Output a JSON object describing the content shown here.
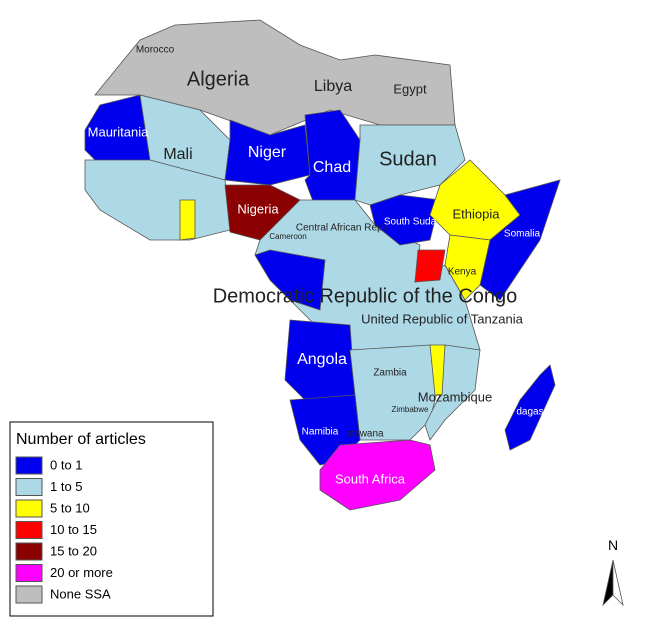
{
  "labels": {
    "morocco": "Morocco",
    "algeria": "Algeria",
    "libya": "Libya",
    "egypt": "Egypt",
    "mauritania": "Mauritania",
    "mali": "Mali",
    "niger": "Niger",
    "chad": "Chad",
    "sudan": "Sudan",
    "nigeria": "Nigeria",
    "south_sudan": "South Suda",
    "ethiopia": "Ethiopia",
    "somalia": "Somalia",
    "car": "Central African Repu",
    "cameroon": "Cameroon",
    "kenya": "Kenya",
    "drc": "Democratic Republic of the Congo",
    "tanzania": "United Republic of Tanzania",
    "angola": "Angola",
    "zambia": "Zambia",
    "mozambique": "Mozambique",
    "zimbabwe": "Zimbabwe",
    "madagascar": "dagas",
    "namibia": "Namibia",
    "botswana": "otswana",
    "south_africa": "South Africa"
  },
  "legend": {
    "title": "Number of articles",
    "items": [
      {
        "label": "0 to 1",
        "color": "#0000ee"
      },
      {
        "label": "1 to 5",
        "color": "#add8e6"
      },
      {
        "label": "5 to 10",
        "color": "#ffff00"
      },
      {
        "label": "10 to 15",
        "color": "#ff0000"
      },
      {
        "label": "15 to 20",
        "color": "#8b0000"
      },
      {
        "label": "20 or more",
        "color": "#ff00ff"
      },
      {
        "label": "None SSA",
        "color": "#bebebe"
      }
    ]
  },
  "north": "N"
}
